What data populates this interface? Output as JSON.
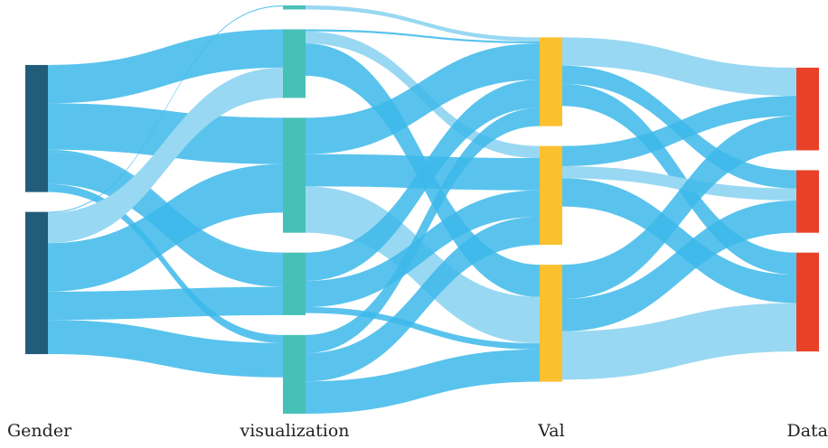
{
  "chart_data": {
    "type": "sankey",
    "axes": [
      {
        "label": "Gender",
        "color": "#215d7a",
        "nodes": 2
      },
      {
        "label": "visualization",
        "color": "#47c0b8",
        "nodes": 5
      },
      {
        "label": "Val",
        "color": "#fbc02d",
        "nodes": 3
      },
      {
        "label": "Data",
        "color": "#e94128",
        "nodes": 3
      }
    ],
    "link_color": "#99d8f2",
    "highlight_color": "#3cb9ea",
    "flows": [
      [
        [
          1,
          0,
          3
        ],
        [
          19,
          0,
          1
        ],
        [
          23,
          0,
          2
        ],
        [
          16,
          0,
          3
        ],
        [
          4,
          0,
          4
        ],
        [
          0.5,
          1,
          0
        ],
        [
          15,
          1,
          1
        ],
        [
          24,
          1,
          2
        ],
        [
          14,
          1,
          3
        ],
        [
          17,
          1,
          4
        ]
      ],
      [
        [
          2,
          0,
          0
        ],
        [
          1,
          1,
          0
        ],
        [
          6,
          1,
          1
        ],
        [
          16,
          1,
          2
        ],
        [
          18,
          2,
          0
        ],
        [
          16,
          2,
          1
        ],
        [
          23,
          2,
          2
        ],
        [
          14,
          3,
          0
        ],
        [
          13,
          3,
          1
        ],
        [
          3,
          3,
          2
        ],
        [
          9,
          4,
          0
        ],
        [
          14,
          4,
          1
        ],
        [
          16,
          4,
          2
        ]
      ],
      [
        [
          14,
          0,
          0
        ],
        [
          9,
          0,
          1
        ],
        [
          11,
          0,
          2
        ],
        [
          10,
          1,
          0
        ],
        [
          6,
          1,
          1
        ],
        [
          14,
          1,
          2
        ],
        [
          17,
          2,
          0
        ],
        [
          16,
          2,
          1
        ],
        [
          24,
          2,
          2
        ]
      ]
    ]
  }
}
